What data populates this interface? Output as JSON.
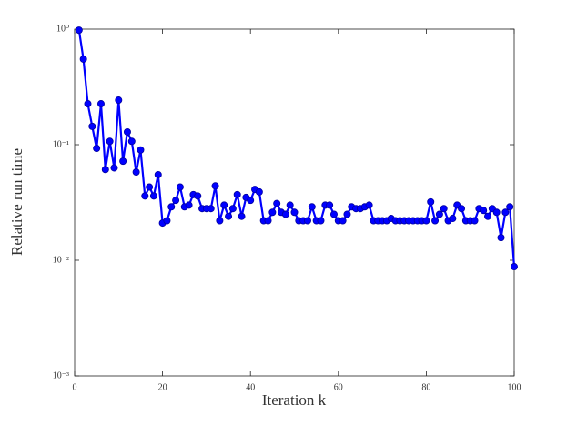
{
  "chart_data": {
    "type": "line",
    "x_label": "Iteration k",
    "y_label": "Relative run time",
    "log_y": true,
    "xlim": [
      0,
      100
    ],
    "xticks": [
      0,
      20,
      40,
      60,
      80,
      100
    ],
    "ylim": [
      0.001,
      1
    ],
    "yticks": [
      {
        "value": 0.001,
        "label": "10⁻³"
      },
      {
        "value": 0.01,
        "label": "10⁻²"
      },
      {
        "value": 0.1,
        "label": "10⁻¹"
      },
      {
        "value": 1,
        "label": "10⁰"
      }
    ],
    "x": [
      1,
      2,
      3,
      4,
      5,
      6,
      7,
      8,
      9,
      10,
      11,
      12,
      13,
      14,
      15,
      16,
      17,
      18,
      19,
      20,
      21,
      22,
      23,
      24,
      25,
      26,
      27,
      28,
      29,
      30,
      31,
      32,
      33,
      34,
      35,
      36,
      37,
      38,
      39,
      40,
      41,
      42,
      43,
      44,
      45,
      46,
      47,
      48,
      49,
      50,
      51,
      52,
      53,
      54,
      55,
      56,
      57,
      58,
      59,
      60,
      61,
      62,
      63,
      64,
      65,
      66,
      67,
      68,
      69,
      70,
      71,
      72,
      73,
      74,
      75,
      76,
      77,
      78,
      79,
      80,
      81,
      82,
      83,
      84,
      85,
      86,
      87,
      88,
      89,
      90,
      91,
      92,
      93,
      94,
      95,
      96,
      97,
      98,
      99,
      100
    ],
    "series": [
      {
        "color": "#0000ff",
        "values": [
          0.98,
          0.55,
          0.226,
          0.144,
          0.093,
          0.226,
          0.061,
          0.107,
          0.063,
          0.243,
          0.072,
          0.129,
          0.107,
          0.058,
          0.09,
          0.036,
          0.043,
          0.036,
          0.055,
          0.021,
          0.022,
          0.029,
          0.033,
          0.043,
          0.029,
          0.03,
          0.037,
          0.036,
          0.028,
          0.028,
          0.028,
          0.044,
          0.022,
          0.03,
          0.024,
          0.028,
          0.037,
          0.024,
          0.035,
          0.033,
          0.041,
          0.039,
          0.022,
          0.022,
          0.026,
          0.031,
          0.026,
          0.025,
          0.03,
          0.026,
          0.022,
          0.022,
          0.022,
          0.029,
          0.022,
          0.022,
          0.03,
          0.03,
          0.025,
          0.022,
          0.022,
          0.025,
          0.029,
          0.028,
          0.028,
          0.029,
          0.03,
          0.022,
          0.022,
          0.022,
          0.022,
          0.023,
          0.022,
          0.022,
          0.022,
          0.022,
          0.022,
          0.022,
          0.022,
          0.022,
          0.032,
          0.022,
          0.025,
          0.028,
          0.022,
          0.023,
          0.03,
          0.028,
          0.022,
          0.022,
          0.022,
          0.028,
          0.027,
          0.024,
          0.028,
          0.026,
          0.0157,
          0.026,
          0.029,
          0.0088
        ]
      }
    ]
  }
}
